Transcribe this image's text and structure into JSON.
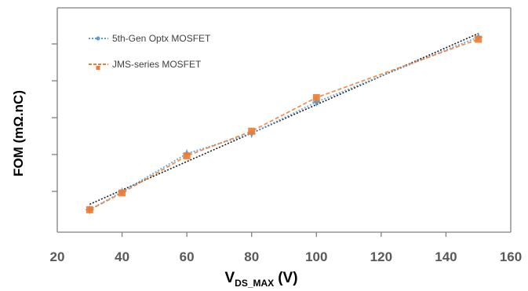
{
  "chart_data": {
    "type": "line",
    "title": "",
    "xlabel_main": "V",
    "xlabel_sub": "DS_MAX",
    "xlabel_unit": "(V)",
    "ylabel": "FOM  (mΩ.nC)",
    "xlim": [
      20,
      160
    ],
    "xticks": [
      "20",
      "40",
      "60",
      "80",
      "100",
      "120",
      "140",
      "160"
    ],
    "yticks_count": 5,
    "legend_position": "top-left",
    "grid": false,
    "series": [
      {
        "name": "5th-Gen  Optx MOSFET",
        "color": "#5b9bd5",
        "marker": "star",
        "line": "dotted",
        "x": [
          30,
          40,
          60,
          80,
          100,
          150
        ],
        "y": [
          1.0,
          1.8,
          3.5,
          4.4,
          5.8,
          8.7
        ]
      },
      {
        "name": "JMS-series  MOSFET",
        "color": "#ed7d31",
        "marker": "square",
        "line": "dashed",
        "x": [
          30,
          40,
          60,
          80,
          100,
          150
        ],
        "y": [
          1.0,
          1.75,
          3.4,
          4.5,
          6.0,
          8.6
        ]
      }
    ],
    "trendline_color": "#1f1f1f"
  }
}
